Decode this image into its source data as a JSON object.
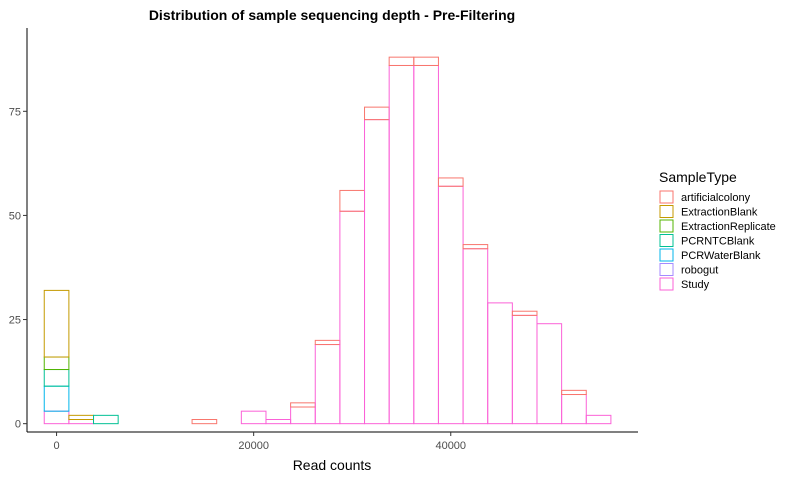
{
  "chart_data": {
    "type": "bar",
    "title": "Distribution of sample sequencing depth - Pre-Filtering",
    "xlabel": "Read counts",
    "ylabel": "",
    "xlim": [
      -3000,
      59000
    ],
    "ylim": [
      -2,
      95
    ],
    "x_ticks": [
      0,
      20000,
      40000
    ],
    "x_tick_labels": [
      "0",
      "20000",
      "40000"
    ],
    "y_ticks": [
      0,
      25,
      50,
      75
    ],
    "y_tick_labels": [
      "0",
      "25",
      "50",
      "75"
    ],
    "grid": false,
    "legend_position": "right",
    "legend_title": "SampleType",
    "bin_width": 2500,
    "categories": [
      0,
      2500,
      5000,
      7500,
      10000,
      12500,
      15000,
      17500,
      20000,
      22500,
      25000,
      27500,
      30000,
      32500,
      35000,
      37500,
      40000,
      42500,
      45000,
      47500,
      50000,
      52500,
      55000
    ],
    "series": [
      {
        "name": "artificialcolony",
        "color": "#F8766D",
        "values": [
          0,
          0,
          0,
          0,
          0,
          0,
          1,
          0,
          0,
          0,
          1,
          1,
          5,
          3,
          2,
          2,
          2,
          1,
          0,
          1,
          0,
          1,
          0
        ]
      },
      {
        "name": "ExtractionBlank",
        "color": "#C49A00",
        "values": [
          16,
          1,
          0,
          0,
          0,
          0,
          0,
          0,
          0,
          0,
          0,
          0,
          0,
          0,
          0,
          0,
          0,
          0,
          0,
          0,
          0,
          0,
          0
        ]
      },
      {
        "name": "ExtractionReplicate",
        "color": "#53B400",
        "values": [
          3,
          0,
          0,
          0,
          0,
          0,
          0,
          0,
          0,
          0,
          0,
          0,
          0,
          0,
          0,
          0,
          0,
          0,
          0,
          0,
          0,
          0,
          0
        ]
      },
      {
        "name": "PCRNTCBlank",
        "color": "#00C094",
        "values": [
          4,
          0,
          2,
          0,
          0,
          0,
          0,
          0,
          0,
          0,
          0,
          0,
          0,
          0,
          0,
          0,
          0,
          0,
          0,
          0,
          0,
          0,
          0
        ]
      },
      {
        "name": "PCRWaterBlank",
        "color": "#00B6EB",
        "values": [
          6,
          0,
          0,
          0,
          0,
          0,
          0,
          0,
          0,
          0,
          0,
          0,
          0,
          0,
          0,
          0,
          0,
          0,
          0,
          0,
          0,
          0,
          0
        ]
      },
      {
        "name": "robogut",
        "color": "#A58AFF",
        "values": [
          0,
          0,
          0,
          0,
          0,
          0,
          0,
          0,
          0,
          0,
          0,
          0,
          0,
          0,
          0,
          0,
          0,
          0,
          0,
          0,
          0,
          0,
          0
        ]
      },
      {
        "name": "Study",
        "color": "#FB61D7",
        "values": [
          3,
          1,
          0,
          0,
          0,
          0,
          0,
          0,
          3,
          1,
          4,
          19,
          51,
          73,
          86,
          86,
          57,
          42,
          29,
          26,
          24,
          7,
          2
        ]
      }
    ]
  }
}
